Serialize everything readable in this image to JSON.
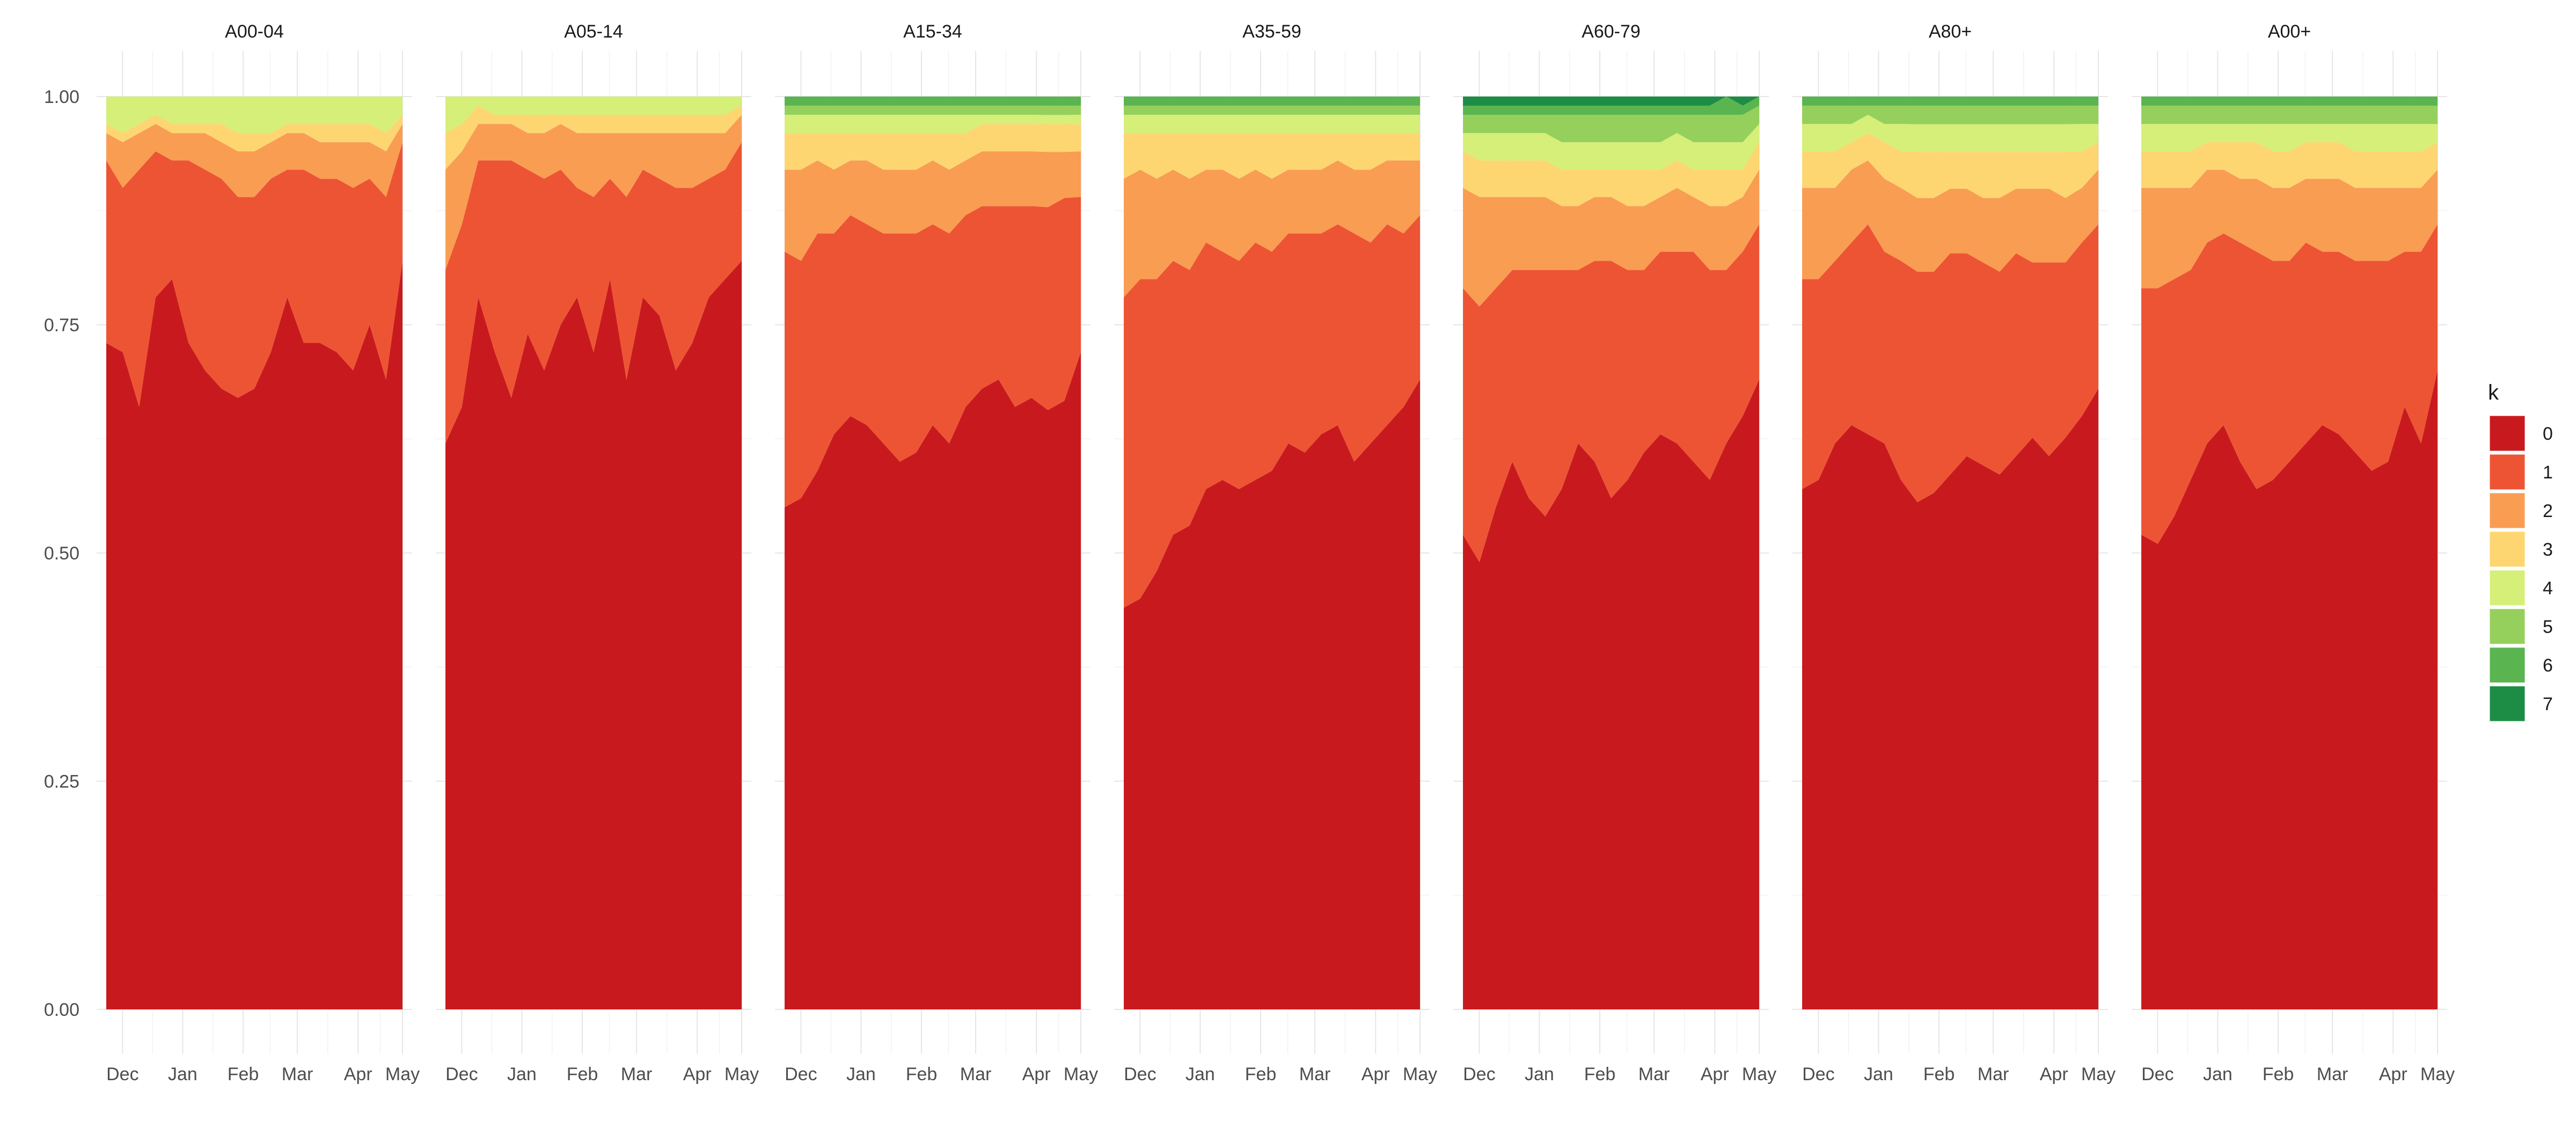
{
  "chart_data": {
    "type": "area",
    "stacked": "fill",
    "facets": [
      "A00-04",
      "A05-14",
      "A15-34",
      "A35-59",
      "A60-79",
      "A80+",
      "A00+"
    ],
    "x_ticks": [
      "Dec",
      "Jan",
      "Feb",
      "Mar",
      "Apr",
      "May"
    ],
    "y_ticks": [
      "0.00",
      "0.25",
      "0.50",
      "0.75",
      "1.00"
    ],
    "ylim": [
      0,
      1
    ],
    "grid": true,
    "legend": {
      "title": "k",
      "position": "right",
      "entries": [
        "0",
        "1",
        "2",
        "3",
        "4",
        "5",
        "6",
        "7"
      ]
    },
    "colors": [
      "#C81A1E",
      "#ED5434",
      "#F99D53",
      "#FDD672",
      "#D5EF79",
      "#95D05C",
      "#5AB550",
      "#1D8D45"
    ],
    "x_dates": [
      "2020-12",
      "2021-01",
      "2021-02",
      "2021-03",
      "2021-04",
      "2021-05"
    ],
    "series_by_facet": [
      {
        "facet": "A00-04",
        "k0": [
          0.73,
          0.72,
          0.66,
          0.78,
          0.8,
          0.73,
          0.7,
          0.68,
          0.67,
          0.68,
          0.72,
          0.78,
          0.73,
          0.73,
          0.72,
          0.7,
          0.75,
          0.69,
          0.82
        ],
        "k1": [
          0.2,
          0.18,
          0.26,
          0.16,
          0.13,
          0.2,
          0.22,
          0.23,
          0.22,
          0.21,
          0.19,
          0.14,
          0.19,
          0.18,
          0.19,
          0.2,
          0.16,
          0.2,
          0.13
        ],
        "k2": [
          0.03,
          0.05,
          0.04,
          0.03,
          0.03,
          0.03,
          0.04,
          0.04,
          0.05,
          0.05,
          0.04,
          0.04,
          0.04,
          0.04,
          0.04,
          0.05,
          0.04,
          0.05,
          0.02
        ],
        "k3": [
          0.01,
          0.01,
          0.01,
          0.01,
          0.01,
          0.01,
          0.01,
          0.02,
          0.02,
          0.02,
          0.01,
          0.01,
          0.01,
          0.02,
          0.02,
          0.02,
          0.02,
          0.02,
          0.01
        ],
        "k4": [
          0.03,
          0.04,
          0.03,
          0.02,
          0.03,
          0.03,
          0.03,
          0.03,
          0.04,
          0.04,
          0.04,
          0.03,
          0.03,
          0.03,
          0.03,
          0.03,
          0.03,
          0.04,
          0.02
        ],
        "k5": [
          0,
          0,
          0,
          0,
          0,
          0,
          0,
          0,
          0,
          0,
          0,
          0,
          0,
          0,
          0,
          0,
          0,
          0,
          0
        ],
        "k6": [
          0,
          0,
          0,
          0,
          0,
          0,
          0,
          0,
          0,
          0,
          0,
          0,
          0,
          0,
          0,
          0,
          0,
          0,
          0
        ],
        "k7": [
          0,
          0,
          0,
          0,
          0,
          0,
          0,
          0,
          0,
          0,
          0,
          0,
          0,
          0,
          0,
          0,
          0,
          0,
          0
        ]
      },
      {
        "facet": "A05-14",
        "k0": [
          0.62,
          0.66,
          0.78,
          0.72,
          0.67,
          0.74,
          0.7,
          0.75,
          0.78,
          0.72,
          0.8,
          0.69,
          0.78,
          0.76,
          0.7,
          0.73,
          0.78,
          0.8,
          0.82
        ],
        "k1": [
          0.19,
          0.2,
          0.15,
          0.21,
          0.26,
          0.18,
          0.21,
          0.17,
          0.12,
          0.17,
          0.11,
          0.2,
          0.14,
          0.15,
          0.2,
          0.17,
          0.13,
          0.12,
          0.13
        ],
        "k2": [
          0.11,
          0.08,
          0.04,
          0.04,
          0.04,
          0.04,
          0.05,
          0.05,
          0.06,
          0.07,
          0.05,
          0.07,
          0.04,
          0.05,
          0.06,
          0.06,
          0.05,
          0.04,
          0.03
        ],
        "k3": [
          0.04,
          0.03,
          0.02,
          0.01,
          0.01,
          0.02,
          0.02,
          0.01,
          0.02,
          0.02,
          0.02,
          0.02,
          0.02,
          0.02,
          0.02,
          0.02,
          0.02,
          0.02,
          0.01
        ],
        "k4": [
          0.04,
          0.03,
          0.01,
          0.02,
          0.02,
          0.02,
          0.02,
          0.02,
          0.02,
          0.02,
          0.02,
          0.02,
          0.02,
          0.02,
          0.02,
          0.02,
          0.02,
          0.02,
          0.01
        ],
        "k5": [
          0,
          0,
          0,
          0,
          0,
          0,
          0,
          0,
          0,
          0,
          0,
          0,
          0,
          0,
          0,
          0,
          0,
          0,
          0
        ],
        "k6": [
          0,
          0,
          0,
          0,
          0,
          0,
          0,
          0,
          0,
          0,
          0,
          0,
          0,
          0,
          0,
          0,
          0,
          0,
          0
        ],
        "k7": [
          0,
          0,
          0,
          0,
          0,
          0,
          0,
          0,
          0,
          0,
          0,
          0,
          0,
          0,
          0,
          0,
          0,
          0,
          0
        ]
      },
      {
        "facet": "A15-34",
        "k0": [
          0.55,
          0.56,
          0.59,
          0.63,
          0.65,
          0.64,
          0.62,
          0.6,
          0.61,
          0.64,
          0.62,
          0.66,
          0.68,
          0.69,
          0.66,
          0.67,
          0.65,
          0.66,
          0.72
        ],
        "k1": [
          0.28,
          0.26,
          0.26,
          0.22,
          0.22,
          0.22,
          0.23,
          0.25,
          0.24,
          0.22,
          0.23,
          0.21,
          0.2,
          0.19,
          0.22,
          0.21,
          0.22,
          0.22,
          0.17
        ],
        "k2": [
          0.09,
          0.1,
          0.08,
          0.07,
          0.06,
          0.07,
          0.07,
          0.07,
          0.07,
          0.07,
          0.07,
          0.06,
          0.06,
          0.06,
          0.06,
          0.06,
          0.06,
          0.05,
          0.05
        ],
        "k3": [
          0.04,
          0.04,
          0.03,
          0.04,
          0.03,
          0.03,
          0.04,
          0.04,
          0.04,
          0.03,
          0.04,
          0.03,
          0.03,
          0.03,
          0.03,
          0.03,
          0.03,
          0.03,
          0.03
        ],
        "k4": [
          0.02,
          0.02,
          0.02,
          0.02,
          0.02,
          0.02,
          0.02,
          0.02,
          0.02,
          0.02,
          0.02,
          0.02,
          0.01,
          0.01,
          0.01,
          0.01,
          0.01,
          0.01,
          0.01
        ],
        "k5": [
          0.01,
          0.01,
          0.01,
          0.01,
          0.01,
          0.01,
          0.01,
          0.01,
          0.01,
          0.01,
          0.01,
          0.01,
          0.01,
          0.01,
          0.01,
          0.01,
          0.01,
          0.01,
          0.01
        ],
        "k6": [
          0.01,
          0.01,
          0.01,
          0.01,
          0.01,
          0.01,
          0.01,
          0.01,
          0.01,
          0.01,
          0.01,
          0.01,
          0.01,
          0.01,
          0.01,
          0.01,
          0.01,
          0.01,
          0.01
        ],
        "k7": [
          0,
          0,
          0,
          0,
          0,
          0,
          0,
          0,
          0,
          0,
          0,
          0,
          0,
          0,
          0,
          0,
          0,
          0,
          0
        ]
      },
      {
        "facet": "A35-59",
        "k0": [
          0.44,
          0.45,
          0.48,
          0.52,
          0.53,
          0.57,
          0.58,
          0.57,
          0.58,
          0.59,
          0.62,
          0.61,
          0.63,
          0.64,
          0.6,
          0.62,
          0.64,
          0.66,
          0.69
        ],
        "k1": [
          0.34,
          0.35,
          0.32,
          0.3,
          0.28,
          0.27,
          0.25,
          0.25,
          0.26,
          0.24,
          0.23,
          0.24,
          0.22,
          0.22,
          0.25,
          0.22,
          0.22,
          0.19,
          0.18
        ],
        "k2": [
          0.13,
          0.12,
          0.11,
          0.1,
          0.1,
          0.08,
          0.09,
          0.09,
          0.08,
          0.08,
          0.07,
          0.07,
          0.07,
          0.07,
          0.07,
          0.08,
          0.07,
          0.08,
          0.06
        ],
        "k3": [
          0.05,
          0.04,
          0.05,
          0.04,
          0.05,
          0.04,
          0.04,
          0.05,
          0.04,
          0.05,
          0.04,
          0.04,
          0.04,
          0.03,
          0.04,
          0.04,
          0.03,
          0.03,
          0.03
        ],
        "k4": [
          0.02,
          0.02,
          0.02,
          0.02,
          0.02,
          0.02,
          0.02,
          0.02,
          0.02,
          0.02,
          0.02,
          0.02,
          0.02,
          0.02,
          0.02,
          0.02,
          0.02,
          0.02,
          0.02
        ],
        "k5": [
          0.01,
          0.01,
          0.01,
          0.01,
          0.01,
          0.01,
          0.01,
          0.01,
          0.01,
          0.01,
          0.01,
          0.01,
          0.01,
          0.01,
          0.01,
          0.01,
          0.01,
          0.01,
          0.01
        ],
        "k6": [
          0.01,
          0.01,
          0.01,
          0.01,
          0.01,
          0.01,
          0.01,
          0.01,
          0.01,
          0.01,
          0.01,
          0.01,
          0.01,
          0.01,
          0.01,
          0.01,
          0.01,
          0.01,
          0.01
        ],
        "k7": [
          0,
          0,
          0,
          0,
          0,
          0,
          0,
          0,
          0,
          0,
          0,
          0,
          0,
          0,
          0,
          0,
          0,
          0,
          0
        ]
      },
      {
        "facet": "A60-79",
        "k0": [
          0.52,
          0.49,
          0.55,
          0.6,
          0.56,
          0.54,
          0.57,
          0.62,
          0.6,
          0.56,
          0.58,
          0.61,
          0.63,
          0.62,
          0.6,
          0.58,
          0.62,
          0.65,
          0.69
        ],
        "k1": [
          0.27,
          0.28,
          0.24,
          0.21,
          0.25,
          0.27,
          0.24,
          0.19,
          0.22,
          0.26,
          0.23,
          0.2,
          0.2,
          0.21,
          0.23,
          0.23,
          0.19,
          0.18,
          0.17
        ],
        "k2": [
          0.11,
          0.12,
          0.1,
          0.08,
          0.08,
          0.08,
          0.07,
          0.07,
          0.07,
          0.07,
          0.07,
          0.07,
          0.06,
          0.07,
          0.06,
          0.07,
          0.07,
          0.06,
          0.06
        ],
        "k3": [
          0.04,
          0.04,
          0.04,
          0.04,
          0.04,
          0.04,
          0.04,
          0.04,
          0.03,
          0.03,
          0.04,
          0.04,
          0.03,
          0.03,
          0.03,
          0.04,
          0.04,
          0.03,
          0.03
        ],
        "k4": [
          0.02,
          0.03,
          0.03,
          0.03,
          0.03,
          0.03,
          0.03,
          0.03,
          0.03,
          0.03,
          0.03,
          0.03,
          0.03,
          0.03,
          0.03,
          0.03,
          0.03,
          0.03,
          0.02
        ],
        "k5": [
          0.02,
          0.02,
          0.02,
          0.02,
          0.02,
          0.02,
          0.03,
          0.03,
          0.03,
          0.03,
          0.03,
          0.03,
          0.03,
          0.02,
          0.03,
          0.03,
          0.03,
          0.03,
          0.02
        ],
        "k6": [
          0.01,
          0.01,
          0.01,
          0.01,
          0.01,
          0.01,
          0.01,
          0.01,
          0.01,
          0.01,
          0.01,
          0.01,
          0.01,
          0.01,
          0.01,
          0.01,
          0.02,
          0.01,
          0.01
        ],
        "k7": [
          0.01,
          0.01,
          0.01,
          0.01,
          0.01,
          0.01,
          0.01,
          0.01,
          0.01,
          0.01,
          0.01,
          0.01,
          0.01,
          0.01,
          0.01,
          0.01,
          0.0,
          0.01,
          0.0
        ]
      },
      {
        "facet": "A80+",
        "k0": [
          0.57,
          0.58,
          0.62,
          0.64,
          0.63,
          0.62,
          0.58,
          0.55,
          0.56,
          0.58,
          0.6,
          0.59,
          0.58,
          0.6,
          0.62,
          0.6,
          0.62,
          0.65,
          0.68
        ],
        "k1": [
          0.23,
          0.22,
          0.2,
          0.2,
          0.23,
          0.21,
          0.24,
          0.25,
          0.24,
          0.24,
          0.22,
          0.22,
          0.22,
          0.22,
          0.19,
          0.21,
          0.19,
          0.19,
          0.18
        ],
        "k2": [
          0.1,
          0.1,
          0.08,
          0.08,
          0.07,
          0.08,
          0.08,
          0.08,
          0.08,
          0.07,
          0.07,
          0.07,
          0.08,
          0.07,
          0.08,
          0.08,
          0.07,
          0.06,
          0.06
        ],
        "k3": [
          0.04,
          0.04,
          0.04,
          0.03,
          0.03,
          0.04,
          0.04,
          0.05,
          0.05,
          0.04,
          0.04,
          0.05,
          0.05,
          0.04,
          0.04,
          0.04,
          0.05,
          0.04,
          0.03
        ],
        "k4": [
          0.03,
          0.03,
          0.03,
          0.02,
          0.02,
          0.02,
          0.03,
          0.03,
          0.03,
          0.03,
          0.03,
          0.03,
          0.03,
          0.03,
          0.03,
          0.03,
          0.03,
          0.03,
          0.02
        ],
        "k5": [
          0.02,
          0.02,
          0.02,
          0.02,
          0.01,
          0.02,
          0.02,
          0.02,
          0.02,
          0.02,
          0.02,
          0.02,
          0.02,
          0.02,
          0.02,
          0.02,
          0.02,
          0.02,
          0.02
        ],
        "k6": [
          0.01,
          0.01,
          0.01,
          0.01,
          0.01,
          0.01,
          0.01,
          0.01,
          0.01,
          0.01,
          0.01,
          0.01,
          0.01,
          0.01,
          0.01,
          0.01,
          0.01,
          0.01,
          0.01
        ],
        "k7": [
          0,
          0,
          0,
          0,
          0,
          0,
          0,
          0,
          0,
          0,
          0,
          0,
          0,
          0,
          0,
          0,
          0,
          0,
          0
        ]
      },
      {
        "facet": "A00+",
        "k0": [
          0.52,
          0.51,
          0.54,
          0.58,
          0.62,
          0.64,
          0.6,
          0.57,
          0.58,
          0.6,
          0.62,
          0.64,
          0.63,
          0.61,
          0.59,
          0.6,
          0.66,
          0.62,
          0.7
        ],
        "k1": [
          0.27,
          0.28,
          0.26,
          0.23,
          0.22,
          0.21,
          0.24,
          0.26,
          0.24,
          0.22,
          0.22,
          0.19,
          0.2,
          0.21,
          0.23,
          0.22,
          0.17,
          0.21,
          0.16
        ],
        "k2": [
          0.11,
          0.11,
          0.1,
          0.09,
          0.08,
          0.07,
          0.07,
          0.08,
          0.08,
          0.08,
          0.07,
          0.08,
          0.08,
          0.08,
          0.08,
          0.08,
          0.07,
          0.07,
          0.06
        ],
        "k3": [
          0.04,
          0.04,
          0.04,
          0.04,
          0.03,
          0.03,
          0.04,
          0.04,
          0.04,
          0.04,
          0.04,
          0.04,
          0.04,
          0.04,
          0.04,
          0.04,
          0.04,
          0.04,
          0.03
        ],
        "k4": [
          0.03,
          0.03,
          0.03,
          0.03,
          0.02,
          0.02,
          0.02,
          0.02,
          0.03,
          0.03,
          0.02,
          0.02,
          0.02,
          0.03,
          0.03,
          0.03,
          0.03,
          0.03,
          0.02
        ],
        "k5": [
          0.02,
          0.02,
          0.02,
          0.02,
          0.02,
          0.02,
          0.02,
          0.02,
          0.02,
          0.02,
          0.02,
          0.02,
          0.02,
          0.02,
          0.02,
          0.02,
          0.02,
          0.02,
          0.02
        ],
        "k6": [
          0.01,
          0.01,
          0.01,
          0.01,
          0.01,
          0.01,
          0.01,
          0.01,
          0.01,
          0.01,
          0.01,
          0.01,
          0.01,
          0.01,
          0.01,
          0.01,
          0.01,
          0.01,
          0.01
        ],
        "k7": [
          0,
          0,
          0,
          0,
          0,
          0,
          0,
          0,
          0,
          0,
          0,
          0,
          0,
          0,
          0,
          0,
          0,
          0,
          0
        ]
      }
    ]
  }
}
